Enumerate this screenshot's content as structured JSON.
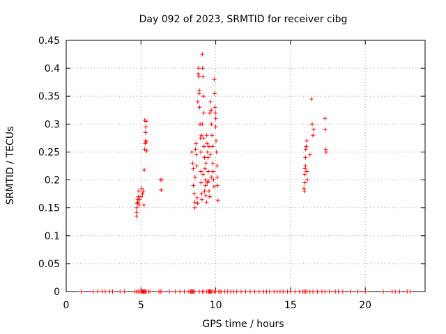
{
  "chart_data": {
    "type": "scatter",
    "title": "Day 092 of 2023, SRMTID for receiver cibg",
    "xlabel": "GPS time / hours",
    "ylabel": "SRMTID / TECUs",
    "xlim": [
      0,
      24
    ],
    "ylim": [
      0,
      0.45
    ],
    "xticks": [
      0,
      5,
      10,
      15,
      20
    ],
    "yticks": [
      0,
      0.05,
      0.1,
      0.15,
      0.2,
      0.25,
      0.3,
      0.35,
      0.4,
      0.45
    ],
    "grid": true,
    "marker": "+",
    "color": "#ff0000",
    "points": [
      [
        4.7,
        0.135
      ],
      [
        4.7,
        0.142
      ],
      [
        4.72,
        0.15
      ],
      [
        4.75,
        0.158
      ],
      [
        4.78,
        0.165
      ],
      [
        4.8,
        0.16
      ],
      [
        4.82,
        0.17
      ],
      [
        4.85,
        0.18
      ],
      [
        4.88,
        0.155
      ],
      [
        4.9,
        0.165
      ],
      [
        5.0,
        0.17
      ],
      [
        5.05,
        0.185
      ],
      [
        5.1,
        0.175
      ],
      [
        5.15,
        0.18
      ],
      [
        5.2,
        0.155
      ],
      [
        5.22,
        0.218
      ],
      [
        5.25,
        0.255
      ],
      [
        5.28,
        0.265
      ],
      [
        5.3,
        0.27
      ],
      [
        5.3,
        0.285
      ],
      [
        5.32,
        0.295
      ],
      [
        5.35,
        0.305
      ],
      [
        5.25,
        0.307
      ],
      [
        5.35,
        0.268
      ],
      [
        5.38,
        0.252
      ],
      [
        6.3,
        0.2
      ],
      [
        6.35,
        0.182
      ],
      [
        6.4,
        0.2
      ],
      [
        8.4,
        0.25
      ],
      [
        8.45,
        0.23
      ],
      [
        8.5,
        0.22
      ],
      [
        8.5,
        0.19
      ],
      [
        8.55,
        0.175
      ],
      [
        8.6,
        0.16
      ],
      [
        8.6,
        0.15
      ],
      [
        8.62,
        0.205
      ],
      [
        8.65,
        0.255
      ],
      [
        8.68,
        0.265
      ],
      [
        8.7,
        0.245
      ],
      [
        8.72,
        0.225
      ],
      [
        8.75,
        0.168
      ],
      [
        8.78,
        0.158
      ],
      [
        8.8,
        0.34
      ],
      [
        8.82,
        0.39
      ],
      [
        8.85,
        0.4
      ],
      [
        8.88,
        0.385
      ],
      [
        8.9,
        0.355
      ],
      [
        8.92,
        0.33
      ],
      [
        8.95,
        0.3
      ],
      [
        8.98,
        0.275
      ],
      [
        9.0,
        0.25
      ],
      [
        9.0,
        0.215
      ],
      [
        9.02,
        0.195
      ],
      [
        9.05,
        0.175
      ],
      [
        9.08,
        0.165
      ],
      [
        9.1,
        0.425
      ],
      [
        9.12,
        0.4
      ],
      [
        9.15,
        0.385
      ],
      [
        9.18,
        0.35
      ],
      [
        9.2,
        0.32
      ],
      [
        9.2,
        0.275
      ],
      [
        9.22,
        0.26
      ],
      [
        9.25,
        0.24
      ],
      [
        9.28,
        0.22
      ],
      [
        9.3,
        0.2
      ],
      [
        9.32,
        0.19
      ],
      [
        9.35,
        0.172
      ],
      [
        9.38,
        0.16
      ],
      [
        9.4,
        0.28
      ],
      [
        9.42,
        0.265
      ],
      [
        9.45,
        0.25
      ],
      [
        9.48,
        0.24
      ],
      [
        9.5,
        0.215
      ],
      [
        9.5,
        0.198
      ],
      [
        9.55,
        0.18
      ],
      [
        9.6,
        0.17
      ],
      [
        9.65,
        0.34
      ],
      [
        9.7,
        0.325
      ],
      [
        9.72,
        0.3
      ],
      [
        9.75,
        0.28
      ],
      [
        9.78,
        0.26
      ],
      [
        9.8,
        0.23
      ],
      [
        9.82,
        0.215
      ],
      [
        9.85,
        0.2
      ],
      [
        9.88,
        0.188
      ],
      [
        9.9,
        0.38
      ],
      [
        9.92,
        0.355
      ],
      [
        9.95,
        0.33
      ],
      [
        9.98,
        0.32
      ],
      [
        10.0,
        0.31
      ],
      [
        10.0,
        0.295
      ],
      [
        10.02,
        0.27
      ],
      [
        10.05,
        0.25
      ],
      [
        10.08,
        0.225
      ],
      [
        10.1,
        0.205
      ],
      [
        10.12,
        0.19
      ],
      [
        10.15,
        0.163
      ],
      [
        9.6,
        0.32
      ],
      [
        9.65,
        0.245
      ],
      [
        9.05,
        0.28
      ],
      [
        9.1,
        0.3
      ],
      [
        8.9,
        0.36
      ],
      [
        9.15,
        0.21
      ],
      [
        9.25,
        0.18
      ],
      [
        9.35,
        0.23
      ],
      [
        9.45,
        0.195
      ],
      [
        9.55,
        0.26
      ],
      [
        9.7,
        0.205
      ],
      [
        15.9,
        0.185
      ],
      [
        15.92,
        0.18
      ],
      [
        15.95,
        0.195
      ],
      [
        15.95,
        0.21
      ],
      [
        15.98,
        0.22
      ],
      [
        16.0,
        0.225
      ],
      [
        16.0,
        0.24
      ],
      [
        16.02,
        0.255
      ],
      [
        16.05,
        0.26
      ],
      [
        16.08,
        0.27
      ],
      [
        16.1,
        0.215
      ],
      [
        16.12,
        0.2
      ],
      [
        16.3,
        0.245
      ],
      [
        16.4,
        0.345
      ],
      [
        16.45,
        0.3
      ],
      [
        16.5,
        0.28
      ],
      [
        16.55,
        0.29
      ],
      [
        17.3,
        0.31
      ],
      [
        17.32,
        0.29
      ],
      [
        17.35,
        0.255
      ],
      [
        17.38,
        0.25
      ]
    ],
    "zero_points_x": [
      1.0,
      1.8,
      2.1,
      2.4,
      2.6,
      2.9,
      3.1,
      3.6,
      3.9,
      4.6,
      4.7,
      4.8,
      4.9,
      5.0,
      5.05,
      5.1,
      5.15,
      5.2,
      5.25,
      5.3,
      5.35,
      5.5,
      5.6,
      6.2,
      6.3,
      6.4,
      6.9,
      7.3,
      7.6,
      7.9,
      8.2,
      8.3,
      8.35,
      8.4,
      8.45,
      8.5,
      8.6,
      8.9,
      9.1,
      9.2,
      9.4,
      9.5,
      9.55,
      9.6,
      9.65,
      9.7,
      9.8,
      9.9,
      10.0,
      10.2,
      10.3,
      10.4,
      10.6,
      10.8,
      11.0,
      11.2,
      11.4,
      11.7,
      12.0,
      12.3,
      12.6,
      12.9,
      13.2,
      13.4,
      13.6,
      13.9,
      14.1,
      14.3,
      14.5,
      14.8,
      15.0,
      15.3,
      15.6,
      15.8,
      15.9,
      16.0,
      16.1,
      16.3,
      16.5,
      16.8,
      17.1,
      17.3,
      17.6,
      18.0,
      18.2,
      18.5,
      19.0,
      19.5,
      20.0,
      21.2,
      21.8,
      22.0,
      22.3,
      22.8,
      23.0
    ]
  }
}
